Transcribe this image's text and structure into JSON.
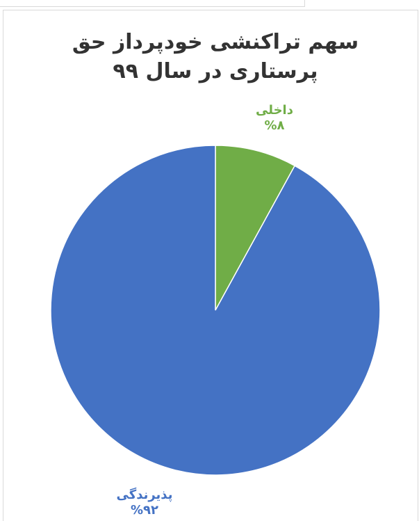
{
  "chart_data": {
    "type": "pie",
    "title_lines": [
      "سهم تراکنشی خودپرداز حق",
      "پرستاری در سال ۹۹"
    ],
    "slices": [
      {
        "label": "داخلی",
        "value": 8,
        "value_text": "%۸",
        "color": "#70AD47"
      },
      {
        "label": "پذیرندگی",
        "value": 92,
        "value_text": "%۹۲",
        "color": "#4472C4"
      }
    ]
  }
}
